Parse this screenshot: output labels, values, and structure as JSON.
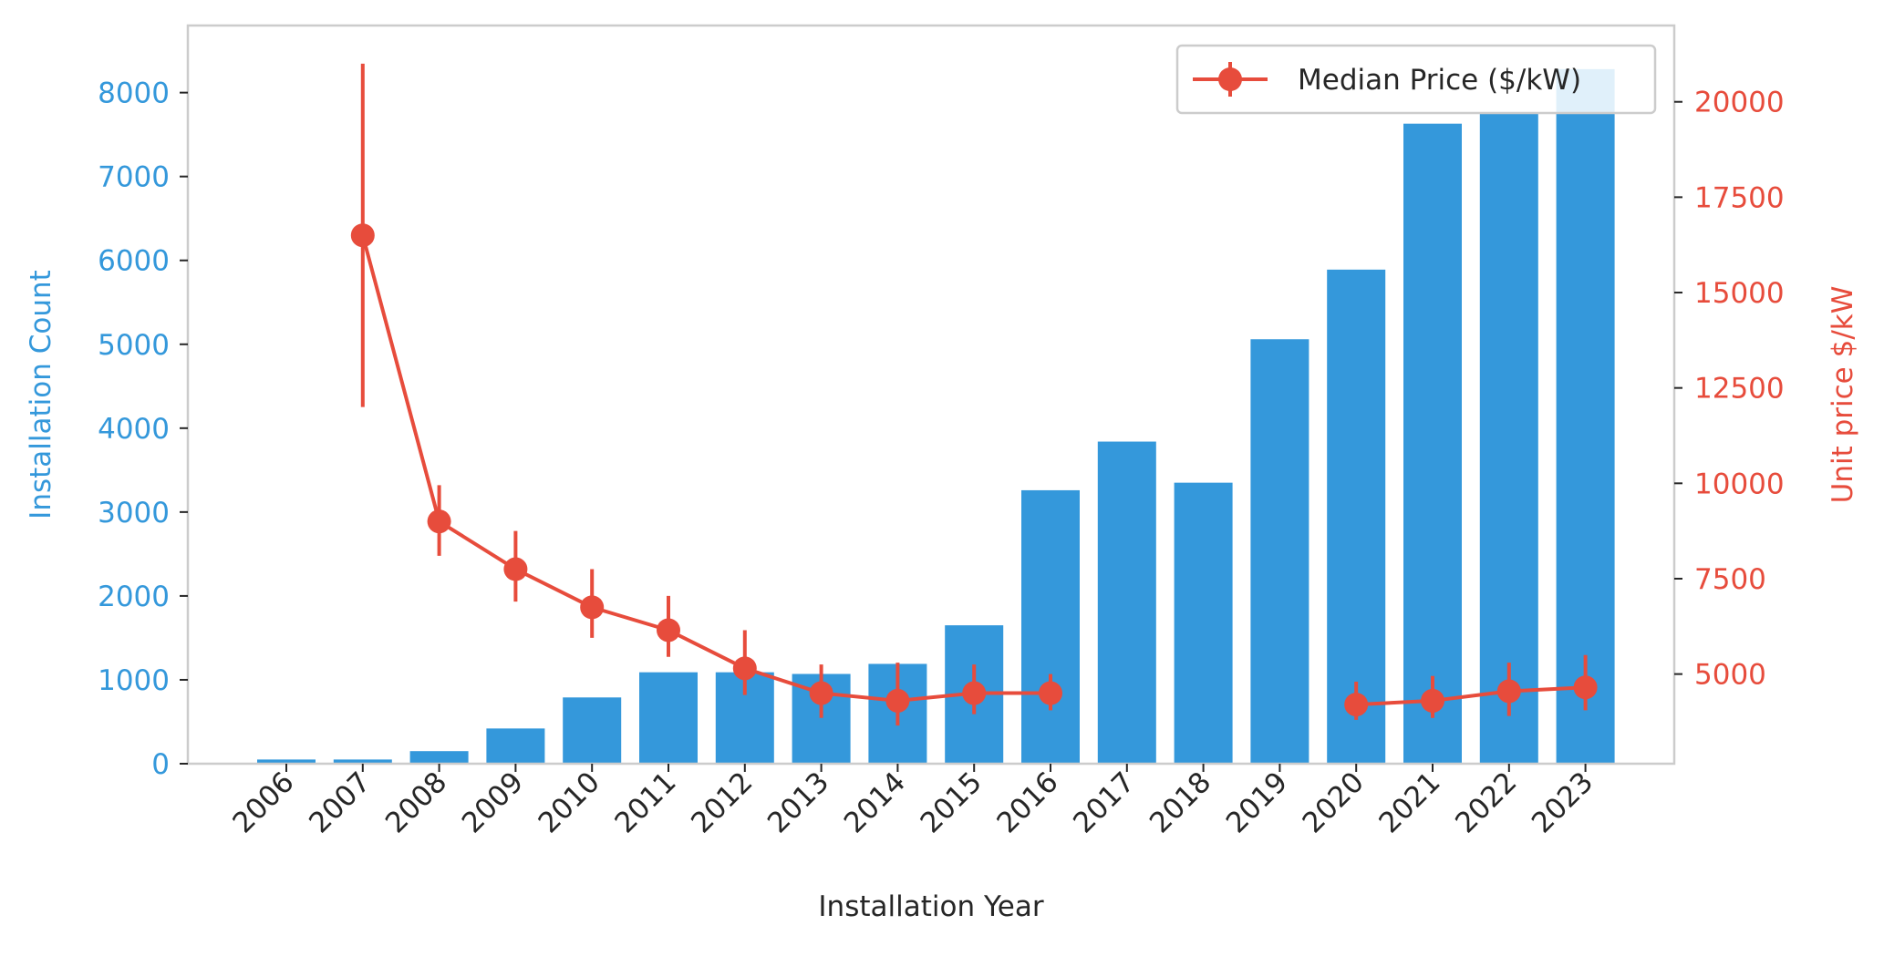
{
  "chart_data": {
    "type": "bar",
    "title": "",
    "xlabel": "Installation Year",
    "ylabel_left": "Installation Count",
    "ylabel_right": "Unit price $/kW",
    "categories": [
      "2006",
      "2007",
      "2008",
      "2009",
      "2010",
      "2011",
      "2012",
      "2013",
      "2014",
      "2015",
      "2016",
      "2017",
      "2018",
      "2019",
      "2020",
      "2021",
      "2022",
      "2023"
    ],
    "left_axis": {
      "range": [
        0,
        8800
      ],
      "ticks": [
        0,
        1000,
        2000,
        3000,
        4000,
        5000,
        6000,
        7000,
        8000
      ],
      "color": "#3498db"
    },
    "right_axis": {
      "range": [
        2650,
        22000
      ],
      "ticks": [
        5000,
        7500,
        10000,
        12500,
        15000,
        17500,
        20000
      ],
      "color": "#e74c3c"
    },
    "grid": false,
    "series": [
      {
        "type": "bar",
        "color": "#3498db",
        "axis": "left",
        "values": [
          50,
          50,
          150,
          420,
          790,
          1090,
          1090,
          1070,
          1190,
          1650,
          3260,
          3840,
          3350,
          5060,
          5890,
          7630,
          7760,
          8280
        ]
      },
      {
        "type": "line",
        "name": "Median Price ($/kW)",
        "color": "#e74c3c",
        "axis": "right",
        "values": [
          null,
          16500,
          9000,
          7750,
          6750,
          6150,
          5150,
          4500,
          4300,
          4500,
          4500,
          null,
          null,
          null,
          4200,
          4300,
          4550,
          4650
        ],
        "error_low": [
          null,
          12000,
          8100,
          6900,
          5950,
          5450,
          4450,
          3850,
          3650,
          3950,
          4050,
          null,
          null,
          null,
          3800,
          3850,
          3900,
          4050
        ],
        "error_high": [
          null,
          21000,
          9950,
          8750,
          7750,
          7050,
          6150,
          5250,
          5300,
          5250,
          5000,
          null,
          null,
          null,
          4800,
          4950,
          5300,
          5500
        ]
      }
    ],
    "legend": {
      "placement": "top-right",
      "entries": [
        "Median Price ($/kW)"
      ]
    }
  }
}
